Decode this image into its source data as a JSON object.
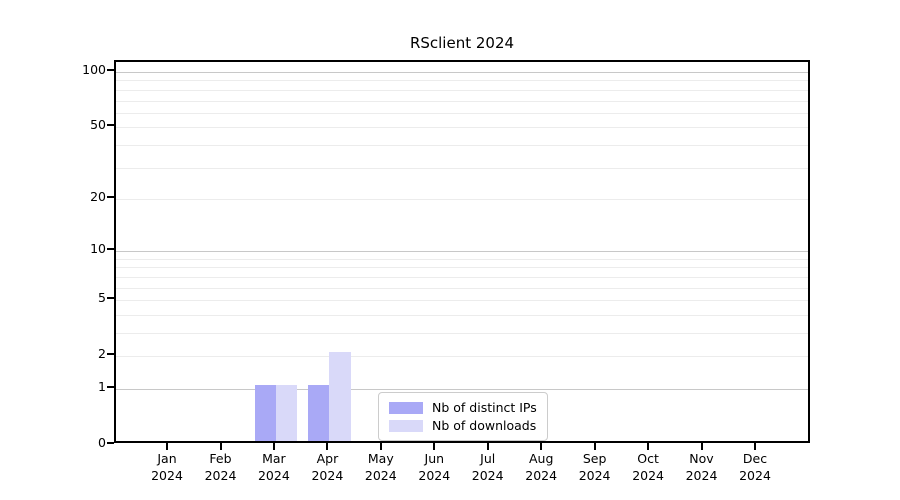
{
  "chart_data": {
    "type": "bar",
    "title": "RSclient 2024",
    "categories": [
      "Jan 2024",
      "Feb 2024",
      "Mar 2024",
      "Apr 2024",
      "May 2024",
      "Jun 2024",
      "Jul 2024",
      "Aug 2024",
      "Sep 2024",
      "Oct 2024",
      "Nov 2024",
      "Dec 2024"
    ],
    "series": [
      {
        "name": "Nb of distinct IPs",
        "color": "#a9a9f6",
        "values": [
          0,
          0,
          1,
          1,
          0,
          0,
          0,
          0,
          0,
          0,
          0,
          0
        ]
      },
      {
        "name": "Nb of downloads",
        "color": "#d9d9f9",
        "values": [
          0,
          0,
          1,
          2,
          0,
          0,
          0,
          0,
          0,
          0,
          0,
          0
        ]
      }
    ],
    "xlabel": "",
    "ylabel": "",
    "y_axis": {
      "scale": "log1p",
      "ylim": [
        0,
        100
      ],
      "labeled_ticks": [
        0,
        1,
        2,
        5,
        10,
        20,
        50,
        100
      ],
      "major_gridlines": [
        1,
        10,
        100
      ],
      "minor_gridlines": [
        2,
        3,
        4,
        5,
        6,
        7,
        8,
        9,
        20,
        30,
        40,
        50,
        60,
        70,
        80,
        90
      ]
    },
    "legend": {
      "position": "inside-bottom-center",
      "entries": [
        "Nb of distinct IPs",
        "Nb of downloads"
      ]
    },
    "grid": true
  },
  "colors": {
    "background": "#ffffff",
    "axis": "#000000",
    "major_grid": "#c8c8c8",
    "minor_grid": "#ececec",
    "series_dark": "#a9a9f6",
    "series_light": "#d9d9f9",
    "legend_border": "#cccccc"
  }
}
